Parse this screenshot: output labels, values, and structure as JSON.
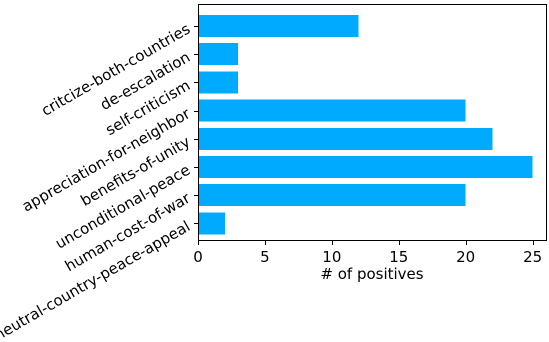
{
  "chart_data": {
    "type": "bar",
    "orientation": "horizontal",
    "categories": [
      "critcize-both-countries",
      "de-escalation",
      "self-criticism",
      "appreciation-for-neighbor",
      "benefits-of-unity",
      "unconditional-peace",
      "human-cost-of-war",
      "neutral-country-peace-appeal"
    ],
    "values": [
      12,
      3,
      3,
      20,
      22,
      25,
      20,
      2
    ],
    "xlabel": "# of positives",
    "ylabel": "",
    "title": "",
    "xlim": [
      0,
      26
    ],
    "xticks": [
      0,
      5,
      10,
      15,
      20,
      25
    ],
    "grid": false,
    "bar_color": "#00aaff",
    "spines": "left-bottom-top-right"
  }
}
